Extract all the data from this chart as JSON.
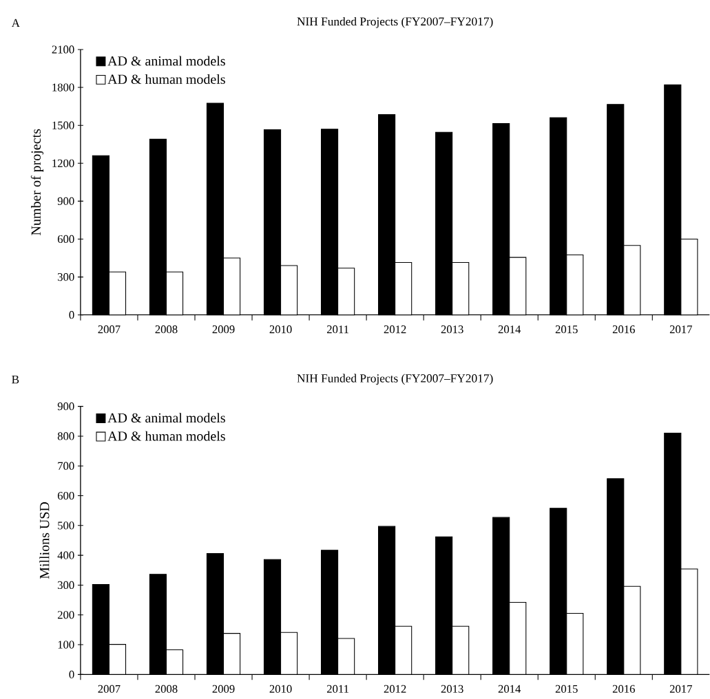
{
  "chart_data": [
    {
      "type": "bar",
      "title": "NIH Funded Projects (FY2007–FY2017)",
      "ylabel": "Number of projects",
      "annotations": [
        "A"
      ],
      "categories": [
        "2007",
        "2008",
        "2009",
        "2010",
        "2011",
        "2012",
        "2013",
        "2014",
        "2015",
        "2016",
        "2017"
      ],
      "series": [
        {
          "name": "AD & animal models",
          "color": "#000000",
          "values": [
            1260,
            1390,
            1675,
            1465,
            1470,
            1585,
            1445,
            1515,
            1560,
            1665,
            1820
          ]
        },
        {
          "name": "AD & human models",
          "color": "#ffffff",
          "values": [
            340,
            340,
            450,
            390,
            370,
            415,
            415,
            455,
            475,
            550,
            600
          ]
        }
      ],
      "ylim": [
        0,
        2100
      ],
      "yticks": [
        0,
        300,
        600,
        900,
        1200,
        1500,
        1800,
        2100
      ],
      "legend": "top left"
    },
    {
      "type": "bar",
      "title": "NIH Funded Projects (FY2007–FY2017)",
      "ylabel": "Millions USD",
      "annotations": [
        "B"
      ],
      "categories": [
        "2007",
        "2008",
        "2009",
        "2010",
        "2011",
        "2012",
        "2013",
        "2014",
        "2015",
        "2016",
        "2017"
      ],
      "series": [
        {
          "name": "AD & animal models",
          "color": "#000000",
          "values": [
            302,
            336,
            406,
            386,
            417,
            497,
            462,
            527,
            558,
            657,
            810
          ]
        },
        {
          "name": "AD & human models",
          "color": "#ffffff",
          "values": [
            101,
            83,
            138,
            141,
            121,
            162,
            162,
            242,
            205,
            296,
            354
          ]
        }
      ],
      "ylim": [
        0,
        900
      ],
      "yticks": [
        0,
        100,
        200,
        300,
        400,
        500,
        600,
        700,
        800,
        900
      ],
      "legend": "top left"
    }
  ]
}
